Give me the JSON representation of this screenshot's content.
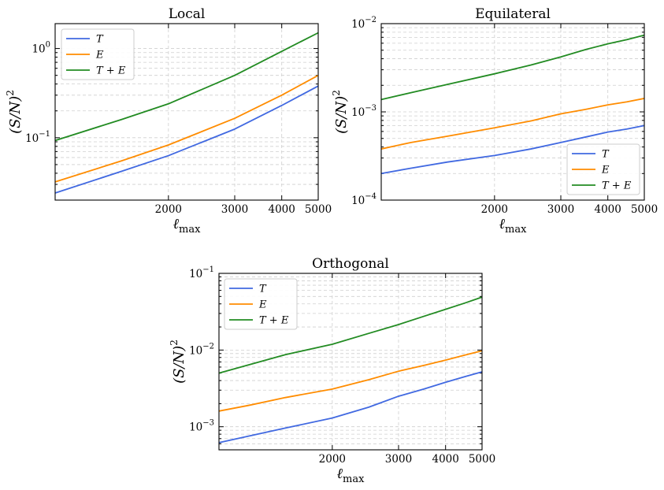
{
  "figure": {
    "x_tick_values": [
      2000,
      3000,
      4000,
      5000
    ],
    "x_tick_labels": [
      "2000",
      "3000",
      "4000",
      "5000"
    ],
    "xlabel_main": "ℓ",
    "xlabel_sub": "max",
    "ylabel_main": "(S/N)",
    "ylabel_sup": "2",
    "xlim": [
      1000,
      5000
    ]
  },
  "series_styles": [
    {
      "key": "T",
      "label": "T",
      "color": "#4169e1"
    },
    {
      "key": "E",
      "label": "E",
      "color": "#ff8c00"
    },
    {
      "key": "TE",
      "label": "T + E",
      "color": "#228b22"
    }
  ],
  "chart_data": [
    {
      "type": "line",
      "title": "Local",
      "xlabel": "ℓ_max",
      "ylabel": "(S/N)^2",
      "xscale": "log",
      "yscale": "log",
      "xlim": [
        1000,
        5000
      ],
      "ylim": [
        0.02,
        1.9
      ],
      "y_ticks": [
        {
          "value": 0.1,
          "base": "10",
          "exp": "−1"
        },
        {
          "value": 1,
          "base": "10",
          "exp": "0"
        }
      ],
      "legend": "top-left",
      "series": [
        {
          "name": "T",
          "x": [
            1000,
            1500,
            2000,
            3000,
            4000,
            5000
          ],
          "values": [
            0.024,
            0.042,
            0.063,
            0.125,
            0.23,
            0.38
          ]
        },
        {
          "name": "E",
          "x": [
            1000,
            1500,
            2000,
            3000,
            4000,
            5000
          ],
          "values": [
            0.032,
            0.055,
            0.083,
            0.165,
            0.3,
            0.5
          ]
        },
        {
          "name": "T + E",
          "x": [
            1000,
            1500,
            2000,
            3000,
            4000,
            5000
          ],
          "values": [
            0.093,
            0.16,
            0.24,
            0.5,
            0.93,
            1.5
          ]
        }
      ]
    },
    {
      "type": "line",
      "title": "Equilateral",
      "xlabel": "ℓ_max",
      "ylabel": "(S/N)^2",
      "xscale": "log",
      "yscale": "log",
      "xlim": [
        1000,
        5000
      ],
      "ylim": [
        0.0001,
        0.01
      ],
      "y_ticks": [
        {
          "value": 0.0001,
          "base": "10",
          "exp": "−4"
        },
        {
          "value": 0.001,
          "base": "10",
          "exp": "−3"
        },
        {
          "value": 0.01,
          "base": "10",
          "exp": "−2"
        }
      ],
      "legend": "bottom-right",
      "series": [
        {
          "name": "T",
          "x": [
            1000,
            1200,
            1500,
            2000,
            2500,
            3000,
            3500,
            4000,
            4500,
            5000
          ],
          "values": [
            0.0002,
            0.00023,
            0.00027,
            0.00032,
            0.00038,
            0.00045,
            0.00052,
            0.00059,
            0.00064,
            0.0007
          ]
        },
        {
          "name": "E",
          "x": [
            1000,
            1200,
            1500,
            2000,
            2500,
            3000,
            3500,
            4000,
            4500,
            5000
          ],
          "values": [
            0.00038,
            0.00045,
            0.00053,
            0.00066,
            0.00079,
            0.00095,
            0.00107,
            0.0012,
            0.0013,
            0.00142
          ]
        },
        {
          "name": "T + E",
          "x": [
            1000,
            1200,
            1500,
            2000,
            2500,
            3000,
            3500,
            4000,
            4500,
            5000
          ],
          "values": [
            0.00138,
            0.00165,
            0.00205,
            0.0027,
            0.0034,
            0.0042,
            0.0051,
            0.0059,
            0.0066,
            0.0074
          ]
        }
      ]
    },
    {
      "type": "line",
      "title": "Orthogonal",
      "xlabel": "ℓ_max",
      "ylabel": "(S/N)^2",
      "xscale": "log",
      "yscale": "log",
      "xlim": [
        1000,
        5000
      ],
      "ylim": [
        0.0005,
        0.1
      ],
      "y_ticks": [
        {
          "value": 0.001,
          "base": "10",
          "exp": "−3"
        },
        {
          "value": 0.01,
          "base": "10",
          "exp": "−2"
        },
        {
          "value": 0.1,
          "base": "10",
          "exp": "−1"
        }
      ],
      "legend": "top-left",
      "series": [
        {
          "name": "T",
          "x": [
            1000,
            1500,
            2000,
            2500,
            3000,
            3500,
            4000,
            4500,
            5000
          ],
          "values": [
            0.00062,
            0.00096,
            0.0013,
            0.0018,
            0.0025,
            0.0031,
            0.0038,
            0.0045,
            0.0052
          ]
        },
        {
          "name": "E",
          "x": [
            1000,
            1200,
            1500,
            2000,
            2500,
            3000,
            3500,
            4000,
            4500,
            5000
          ],
          "values": [
            0.0016,
            0.0019,
            0.0024,
            0.0031,
            0.0041,
            0.0053,
            0.0063,
            0.0074,
            0.0086,
            0.0098
          ]
        },
        {
          "name": "T + E",
          "x": [
            1000,
            1500,
            2000,
            2500,
            3000,
            3500,
            4000,
            4500,
            5000
          ],
          "values": [
            0.005,
            0.0087,
            0.0119,
            0.0165,
            0.0215,
            0.0275,
            0.034,
            0.041,
            0.049
          ]
        }
      ]
    }
  ]
}
